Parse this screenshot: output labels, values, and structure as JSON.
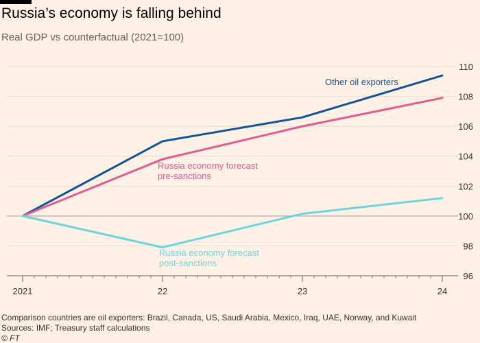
{
  "header": {
    "title": "Russia’s economy is falling behind",
    "subtitle": "Real GDP vs counterfactual (2021=100)"
  },
  "footer": {
    "note": "Comparison countries are oil exporters: Brazil, Canada, US, Saudi Arabia, Mexico, Iraq, UAE, Norway, and Kuwait",
    "sources": "Sources: IMF; Treasury staff calculations",
    "copyright": "© FT"
  },
  "chart_data": {
    "type": "line",
    "title": "Russia’s economy is falling behind",
    "subtitle": "Real GDP vs counterfactual (2021=100)",
    "x": [
      2021,
      2022,
      2023,
      2024
    ],
    "x_tick_labels": [
      "2021",
      "22",
      "23",
      "24"
    ],
    "ylim": [
      96,
      110
    ],
    "y_ticks": [
      96,
      98,
      100,
      102,
      104,
      106,
      108,
      110
    ],
    "y_axis_side": "right",
    "grid": true,
    "series": [
      {
        "name": "Other oil exporters",
        "label_lines": [
          "Other oil exporters"
        ],
        "color": "#0f5499",
        "values": [
          100,
          105.0,
          106.6,
          109.4
        ]
      },
      {
        "name": "Russia economy forecast pre-sanctions",
        "label_lines": [
          "Russia economy forecast",
          "pre-sanctions"
        ],
        "color": "#e05c91",
        "values": [
          100,
          103.8,
          106.0,
          107.9
        ]
      },
      {
        "name": "Russia economy forecast post-sanctions",
        "label_lines": [
          "Russia economy forecast",
          "post-sanctions"
        ],
        "color": "#6fd3dc",
        "values": [
          100,
          97.9,
          100.15,
          101.2
        ]
      }
    ]
  }
}
